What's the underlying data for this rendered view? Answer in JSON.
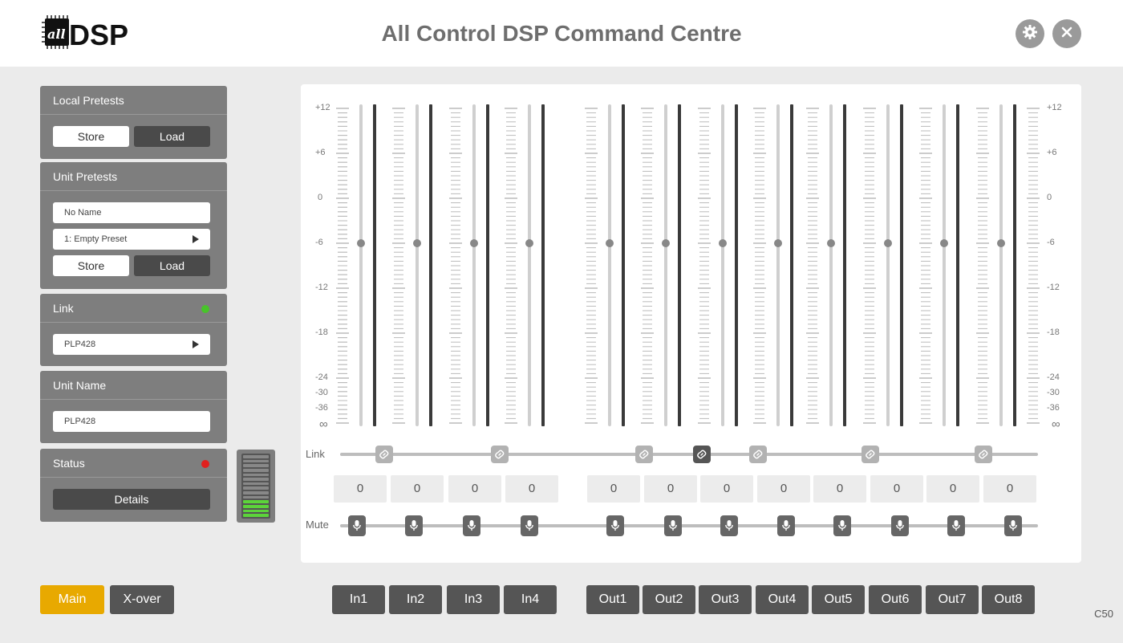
{
  "header": {
    "logo_small": "all",
    "logo_big": "DSP",
    "title": "All Control DSP Command Centre",
    "settings_icon": "gear-icon",
    "close_icon": "close-icon"
  },
  "local_presets": {
    "title": "Local Pretests",
    "store_label": "Store",
    "load_label": "Load"
  },
  "unit_presets": {
    "title": "Unit Pretests",
    "name_value": "No Name",
    "preset_value": "1: Empty Preset",
    "store_label": "Store",
    "load_label": "Load"
  },
  "link_panel": {
    "title": "Link",
    "status_color": "#48c42a",
    "device_value": "PLP428"
  },
  "unit_name": {
    "title": "Unit Name",
    "value": "PLP428"
  },
  "status_panel": {
    "title": "Status",
    "status_color": "#e0201e",
    "details_label": "Details"
  },
  "level_meter": {
    "segments": 14,
    "lit_segments": 4
  },
  "mixer": {
    "scale_labels": [
      "+12",
      "+6",
      "0",
      "-6",
      "-12",
      "-18",
      "-24",
      "-30",
      "-36",
      "∞"
    ],
    "link_label": "Link",
    "mute_label": "Mute",
    "channels": [
      {
        "name": "In1",
        "value": "0",
        "fader_db": -6,
        "mute_icon": "microphone-icon"
      },
      {
        "name": "In2",
        "value": "0",
        "fader_db": -6,
        "mute_icon": "microphone-icon"
      },
      {
        "name": "In3",
        "value": "0",
        "fader_db": -6,
        "mute_icon": "microphone-icon"
      },
      {
        "name": "In4",
        "value": "0",
        "fader_db": -6,
        "mute_icon": "microphone-icon"
      },
      {
        "name": "Out1",
        "value": "0",
        "fader_db": -6,
        "mute_icon": "microphone-icon"
      },
      {
        "name": "Out2",
        "value": "0",
        "fader_db": -6,
        "mute_icon": "microphone-icon"
      },
      {
        "name": "Out3",
        "value": "0",
        "fader_db": -6,
        "mute_icon": "microphone-icon"
      },
      {
        "name": "Out4",
        "value": "0",
        "fader_db": -6,
        "mute_icon": "microphone-icon"
      },
      {
        "name": "Out5",
        "value": "0",
        "fader_db": -6,
        "mute_icon": "microphone-icon"
      },
      {
        "name": "Out6",
        "value": "0",
        "fader_db": -6,
        "mute_icon": "microphone-icon"
      },
      {
        "name": "Out7",
        "value": "0",
        "fader_db": -6,
        "mute_icon": "microphone-icon"
      },
      {
        "name": "Out8",
        "value": "0",
        "fader_db": -6,
        "mute_icon": "microphone-icon"
      }
    ],
    "link_buttons": [
      {
        "pair": "In1-In2",
        "active": false,
        "icon": "link-icon"
      },
      {
        "pair": "In3-In4",
        "active": false,
        "icon": "link-icon"
      },
      {
        "pair": "Out1-Out2",
        "active": false,
        "icon": "link-icon"
      },
      {
        "pair": "Out2-Out3",
        "active": true,
        "icon": "link-icon"
      },
      {
        "pair": "Out3-Out4",
        "active": false,
        "icon": "link-icon"
      },
      {
        "pair": "Out5-Out6",
        "active": false,
        "icon": "link-icon"
      },
      {
        "pair": "Out7-Out8",
        "active": false,
        "icon": "link-icon"
      }
    ]
  },
  "footer": {
    "main_label": "Main",
    "xover_label": "X-over",
    "accent_color": "#e8a900",
    "version": "C50"
  }
}
